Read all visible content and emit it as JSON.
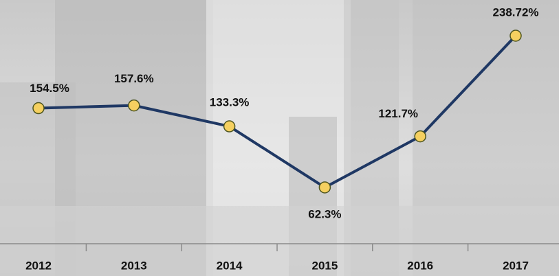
{
  "chart_data": {
    "type": "line",
    "categories": [
      "2012",
      "2013",
      "2014",
      "2015",
      "2016",
      "2017"
    ],
    "values": [
      154.5,
      157.6,
      133.3,
      62.3,
      121.7,
      238.72
    ],
    "value_labels": [
      "154.5%",
      "157.6%",
      "133.3%",
      "62.3%",
      "121.7%",
      "238.72%"
    ],
    "color": "#1f3864",
    "marker_color": "#f5d060"
  }
}
